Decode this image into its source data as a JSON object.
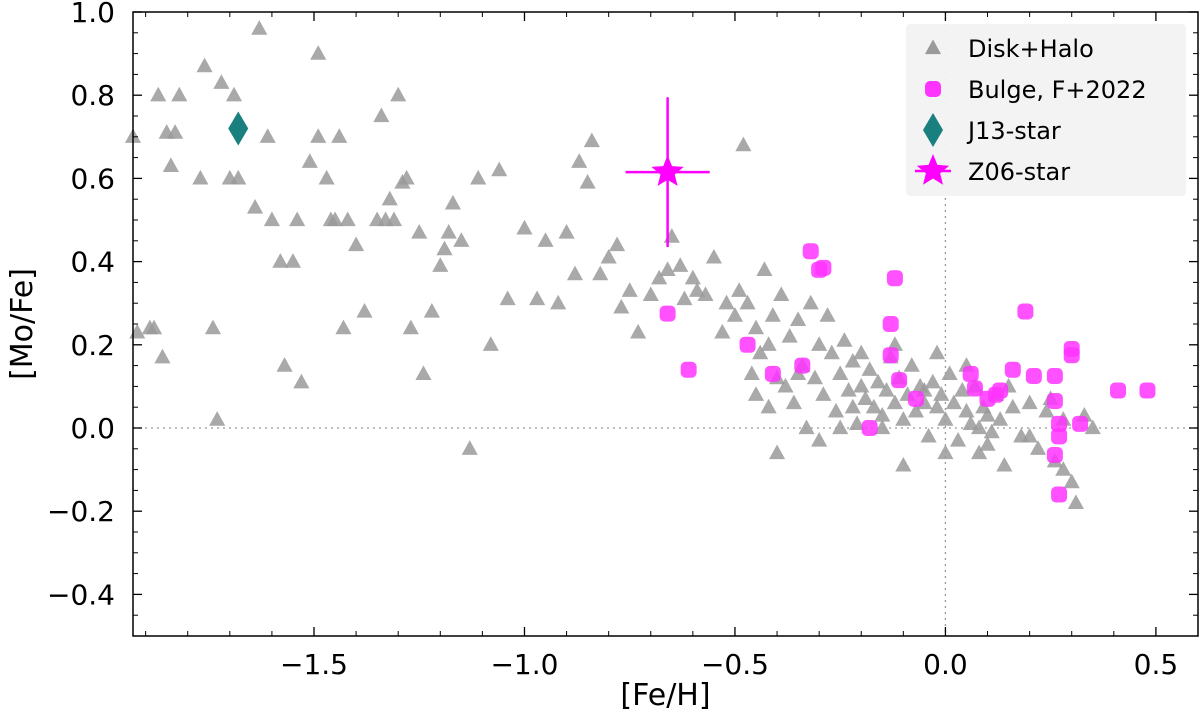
{
  "chart_data": {
    "type": "scatter",
    "title": "",
    "xlabel": "[Fe/H]",
    "ylabel": "[Mo/Fe]",
    "xlim": [
      -1.93,
      0.6
    ],
    "ylim": [
      -0.5,
      1.0
    ],
    "xticks": [
      -1.5,
      -1.0,
      -0.5,
      0.0,
      0.5
    ],
    "xtick_labels": [
      "−1.5",
      "−1.0",
      "−0.5",
      "0.0",
      "0.5"
    ],
    "yticks": [
      -0.4,
      -0.2,
      0.0,
      0.2,
      0.4,
      0.6,
      0.8,
      1.0
    ],
    "ytick_labels": [
      "−0.4",
      "−0.2",
      "0.0",
      "0.2",
      "0.4",
      "0.6",
      "0.8",
      "1.0"
    ],
    "reference_lines": {
      "x": 0.0,
      "y": 0.0,
      "style": "dotted"
    },
    "legend": {
      "placement": "top-right"
    },
    "series": [
      {
        "name": "Disk+Halo",
        "marker": "triangle",
        "color": "#9a9a9a",
        "points": [
          [
            -1.93,
            0.7
          ],
          [
            -1.92,
            0.23
          ],
          [
            -1.89,
            0.24
          ],
          [
            -1.88,
            0.24
          ],
          [
            -1.87,
            0.8
          ],
          [
            -1.86,
            0.17
          ],
          [
            -1.85,
            0.71
          ],
          [
            -1.84,
            0.63
          ],
          [
            -1.83,
            0.71
          ],
          [
            -1.82,
            0.8
          ],
          [
            -1.77,
            0.6
          ],
          [
            -1.76,
            0.87
          ],
          [
            -1.74,
            0.24
          ],
          [
            -1.73,
            0.02
          ],
          [
            -1.72,
            0.83
          ],
          [
            -1.7,
            0.6
          ],
          [
            -1.69,
            0.8
          ],
          [
            -1.68,
            0.6
          ],
          [
            -1.64,
            0.53
          ],
          [
            -1.63,
            0.96
          ],
          [
            -1.61,
            0.7
          ],
          [
            -1.6,
            0.5
          ],
          [
            -1.58,
            0.4
          ],
          [
            -1.57,
            0.15
          ],
          [
            -1.55,
            0.4
          ],
          [
            -1.54,
            0.5
          ],
          [
            -1.53,
            0.11
          ],
          [
            -1.51,
            0.64
          ],
          [
            -1.49,
            0.7
          ],
          [
            -1.49,
            0.9
          ],
          [
            -1.47,
            0.6
          ],
          [
            -1.46,
            0.5
          ],
          [
            -1.45,
            0.5
          ],
          [
            -1.44,
            0.7
          ],
          [
            -1.43,
            0.24
          ],
          [
            -1.42,
            0.5
          ],
          [
            -1.4,
            0.44
          ],
          [
            -1.38,
            0.28
          ],
          [
            -1.35,
            0.5
          ],
          [
            -1.34,
            0.75
          ],
          [
            -1.33,
            0.5
          ],
          [
            -1.32,
            0.55
          ],
          [
            -1.31,
            0.5
          ],
          [
            -1.3,
            0.8
          ],
          [
            -1.29,
            0.59
          ],
          [
            -1.28,
            0.6
          ],
          [
            -1.27,
            0.24
          ],
          [
            -1.25,
            0.47
          ],
          [
            -1.24,
            0.13
          ],
          [
            -1.22,
            0.28
          ],
          [
            -1.2,
            0.39
          ],
          [
            -1.19,
            0.43
          ],
          [
            -1.18,
            0.47
          ],
          [
            -1.17,
            0.54
          ],
          [
            -1.15,
            0.45
          ],
          [
            -1.13,
            -0.05
          ],
          [
            -1.11,
            0.6
          ],
          [
            -1.08,
            0.2
          ],
          [
            -1.06,
            0.62
          ],
          [
            -1.04,
            0.31
          ],
          [
            -1.0,
            0.48
          ],
          [
            -0.97,
            0.31
          ],
          [
            -0.95,
            0.45
          ],
          [
            -0.92,
            0.3
          ],
          [
            -0.9,
            0.47
          ],
          [
            -0.88,
            0.37
          ],
          [
            -0.87,
            0.64
          ],
          [
            -0.85,
            0.59
          ],
          [
            -0.84,
            0.69
          ],
          [
            -0.82,
            0.37
          ],
          [
            -0.8,
            0.41
          ],
          [
            -0.78,
            0.44
          ],
          [
            -0.77,
            0.29
          ],
          [
            -0.75,
            0.33
          ],
          [
            -0.73,
            0.23
          ],
          [
            -0.7,
            0.32
          ],
          [
            -0.68,
            0.36
          ],
          [
            -0.66,
            0.38
          ],
          [
            -0.65,
            0.46
          ],
          [
            -0.63,
            0.39
          ],
          [
            -0.62,
            0.31
          ],
          [
            -0.6,
            0.36
          ],
          [
            -0.59,
            0.33
          ],
          [
            -0.57,
            0.32
          ],
          [
            -0.55,
            0.41
          ],
          [
            -0.53,
            0.23
          ],
          [
            -0.52,
            0.3
          ],
          [
            -0.5,
            0.27
          ],
          [
            -0.49,
            0.33
          ],
          [
            -0.48,
            0.68
          ],
          [
            -0.47,
            0.3
          ],
          [
            -0.46,
            0.13
          ],
          [
            -0.45,
            0.24
          ],
          [
            -0.44,
            0.18
          ],
          [
            -0.43,
            0.38
          ],
          [
            -0.42,
            0.05
          ],
          [
            -0.42,
            0.2
          ],
          [
            -0.41,
            0.27
          ],
          [
            -0.4,
            0.12
          ],
          [
            -0.39,
            0.32
          ],
          [
            -0.38,
            0.1
          ],
          [
            -0.37,
            0.22
          ],
          [
            -0.36,
            0.06
          ],
          [
            -0.35,
            0.26
          ],
          [
            -0.34,
            0.15
          ],
          [
            -0.33,
            0.0
          ],
          [
            -0.32,
            0.3
          ],
          [
            -0.31,
            0.12
          ],
          [
            -0.3,
            0.2
          ],
          [
            -0.29,
            0.08
          ],
          [
            -0.28,
            0.27
          ],
          [
            -0.27,
            0.18
          ],
          [
            -0.26,
            0.04
          ],
          [
            -0.25,
            0.13
          ],
          [
            -0.24,
            0.21
          ],
          [
            -0.23,
            0.09
          ],
          [
            -0.22,
            0.16
          ],
          [
            -0.21,
            0.01
          ],
          [
            -0.2,
            0.1
          ],
          [
            -0.19,
            0.07
          ],
          [
            -0.18,
            0.14
          ],
          [
            -0.17,
            0.05
          ],
          [
            -0.16,
            0.11
          ],
          [
            -0.15,
            0.03
          ],
          [
            -0.14,
            0.09
          ],
          [
            -0.13,
            0.17
          ],
          [
            -0.12,
            0.06
          ],
          [
            -0.11,
            0.12
          ],
          [
            -0.1,
            0.02
          ],
          [
            -0.09,
            0.08
          ],
          [
            -0.08,
            0.15
          ],
          [
            -0.07,
            0.04
          ],
          [
            -0.06,
            0.1
          ],
          [
            -0.05,
            0.06
          ],
          [
            -0.04,
            -0.02
          ],
          [
            -0.03,
            0.11
          ],
          [
            -0.02,
            0.05
          ],
          [
            -0.01,
            0.08
          ],
          [
            0.0,
            0.02
          ],
          [
            0.01,
            0.13
          ],
          [
            0.02,
            0.06
          ],
          [
            0.03,
            -0.03
          ],
          [
            0.04,
            0.09
          ],
          [
            0.05,
            0.04
          ],
          [
            0.06,
            0.01
          ],
          [
            0.07,
            0.1
          ],
          [
            0.08,
            -0.06
          ],
          [
            0.09,
            0.05
          ],
          [
            0.1,
            0.03
          ],
          [
            0.11,
            -0.01
          ],
          [
            0.12,
            0.08
          ],
          [
            0.13,
            0.02
          ],
          [
            0.14,
            -0.09
          ],
          [
            0.16,
            0.05
          ],
          [
            0.18,
            -0.02
          ],
          [
            0.2,
            0.06
          ],
          [
            0.22,
            -0.05
          ],
          [
            0.24,
            0.04
          ],
          [
            0.26,
            -0.08
          ],
          [
            0.28,
            0.02
          ],
          [
            0.3,
            -0.13
          ],
          [
            0.31,
            -0.18
          ],
          [
            0.33,
            0.03
          ],
          [
            0.35,
            0.0
          ],
          [
            -0.45,
            0.08
          ],
          [
            -0.4,
            -0.06
          ],
          [
            -0.35,
            0.13
          ],
          [
            -0.3,
            -0.03
          ],
          [
            -0.25,
            0.0
          ],
          [
            -0.2,
            0.18
          ],
          [
            -0.15,
            0.0
          ],
          [
            -0.1,
            -0.09
          ],
          [
            -0.05,
            0.09
          ],
          [
            0.0,
            -0.06
          ],
          [
            0.05,
            0.15
          ],
          [
            0.1,
            -0.04
          ],
          [
            0.15,
            0.1
          ],
          [
            0.2,
            -0.02
          ],
          [
            0.25,
            0.07
          ],
          [
            0.28,
            -0.1
          ],
          [
            -0.22,
            0.05
          ],
          [
            -0.12,
            0.2
          ],
          [
            -0.02,
            0.18
          ],
          [
            0.08,
            0.0
          ]
        ]
      },
      {
        "name": "Bulge, F+2022",
        "marker": "circle",
        "color": "#ff33ff",
        "points": [
          [
            -0.66,
            0.275
          ],
          [
            -0.61,
            0.14
          ],
          [
            -0.47,
            0.2
          ],
          [
            -0.41,
            0.13
          ],
          [
            -0.34,
            0.15
          ],
          [
            -0.32,
            0.425
          ],
          [
            -0.3,
            0.38
          ],
          [
            -0.29,
            0.385
          ],
          [
            -0.18,
            0.0
          ],
          [
            -0.13,
            0.25
          ],
          [
            -0.12,
            0.36
          ],
          [
            -0.13,
            0.175
          ],
          [
            -0.11,
            0.115
          ],
          [
            -0.07,
            0.07
          ],
          [
            0.06,
            0.13
          ],
          [
            0.07,
            0.095
          ],
          [
            0.1,
            0.07
          ],
          [
            0.12,
            0.08
          ],
          [
            0.13,
            0.09
          ],
          [
            0.16,
            0.14
          ],
          [
            0.19,
            0.28
          ],
          [
            0.21,
            0.125
          ],
          [
            0.26,
            0.125
          ],
          [
            0.26,
            0.065
          ],
          [
            0.27,
            0.01
          ],
          [
            0.27,
            -0.02
          ],
          [
            0.26,
            -0.065
          ],
          [
            0.27,
            -0.16
          ],
          [
            0.3,
            0.19
          ],
          [
            0.3,
            0.175
          ],
          [
            0.32,
            0.01
          ],
          [
            0.41,
            0.09
          ],
          [
            0.48,
            0.09
          ]
        ]
      },
      {
        "name": "J13-star",
        "marker": "diamond",
        "color": "#1a7f7f",
        "points": [
          [
            -1.68,
            0.72
          ]
        ]
      },
      {
        "name": "Z06-star",
        "marker": "star",
        "color": "#ff00ff",
        "points": [
          [
            -0.66,
            0.615
          ]
        ],
        "xerr": 0.1,
        "yerr": 0.18
      }
    ]
  }
}
